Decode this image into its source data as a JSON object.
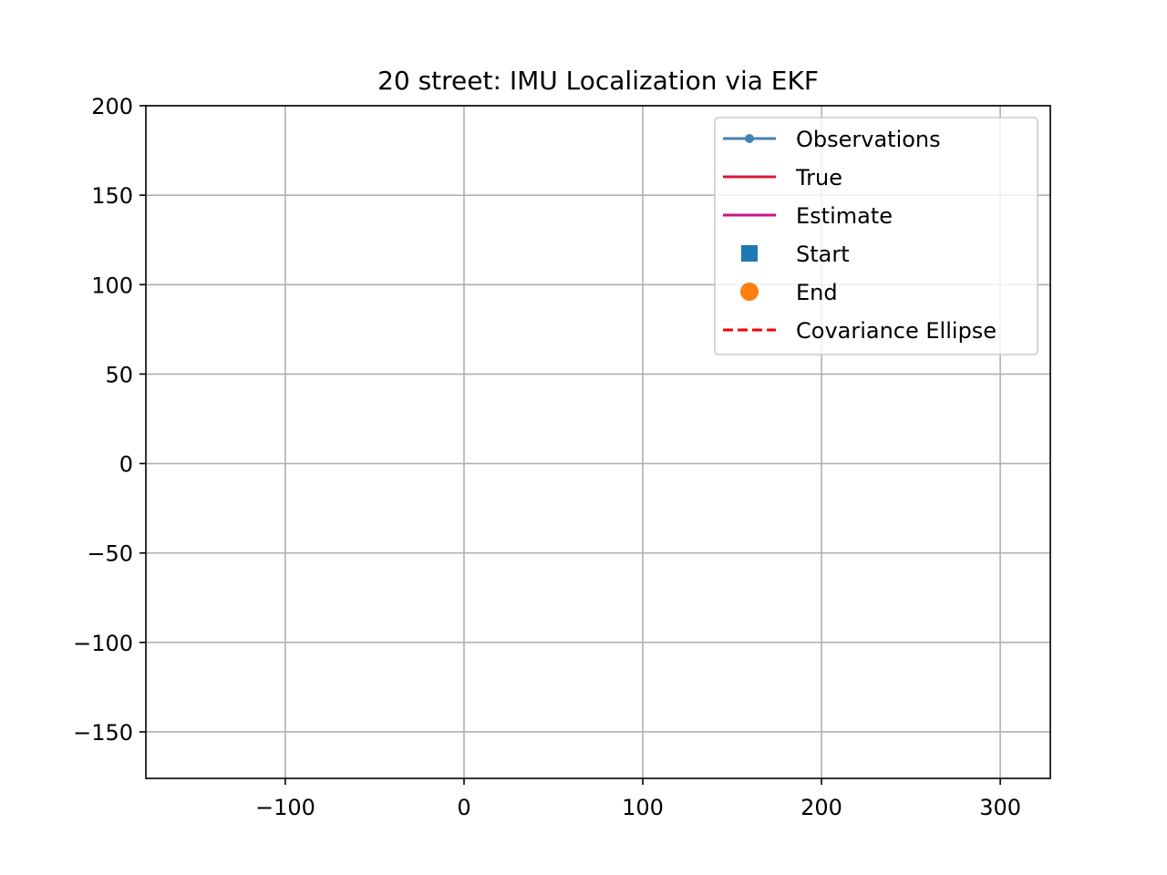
{
  "chart_data": {
    "type": "line",
    "title": "20 street: IMU Localization via EKF",
    "xlabel": "",
    "ylabel": "",
    "xlim": [
      -178,
      328
    ],
    "ylim": [
      -176,
      200
    ],
    "xticks": [
      -100,
      0,
      100,
      200,
      300
    ],
    "yticks": [
      -150,
      -100,
      -50,
      0,
      50,
      100,
      150,
      200
    ],
    "xtick_labels": [
      "−100",
      "0",
      "100",
      "200",
      "300"
    ],
    "ytick_labels": [
      "−150",
      "−100",
      "−50",
      "0",
      "50",
      "100",
      "150",
      "200"
    ],
    "grid": true,
    "legend_position": "upper-right",
    "series": [
      {
        "name": "Observations",
        "style": "line-with-dot-marker",
        "color": "#4682b4",
        "x": [],
        "y": []
      },
      {
        "name": "True",
        "style": "solid-line",
        "color": "#dc143c",
        "x": [],
        "y": []
      },
      {
        "name": "Estimate",
        "style": "solid-line",
        "color": "#c71585",
        "x": [],
        "y": []
      },
      {
        "name": "Start",
        "style": "square-marker",
        "color": "#1f77b4",
        "x": [],
        "y": []
      },
      {
        "name": "End",
        "style": "circle-marker",
        "color": "#ff7f0e",
        "x": [],
        "y": []
      },
      {
        "name": "Covariance Ellipse",
        "style": "dashed-line",
        "color": "#ff0000",
        "x": [],
        "y": []
      }
    ]
  }
}
